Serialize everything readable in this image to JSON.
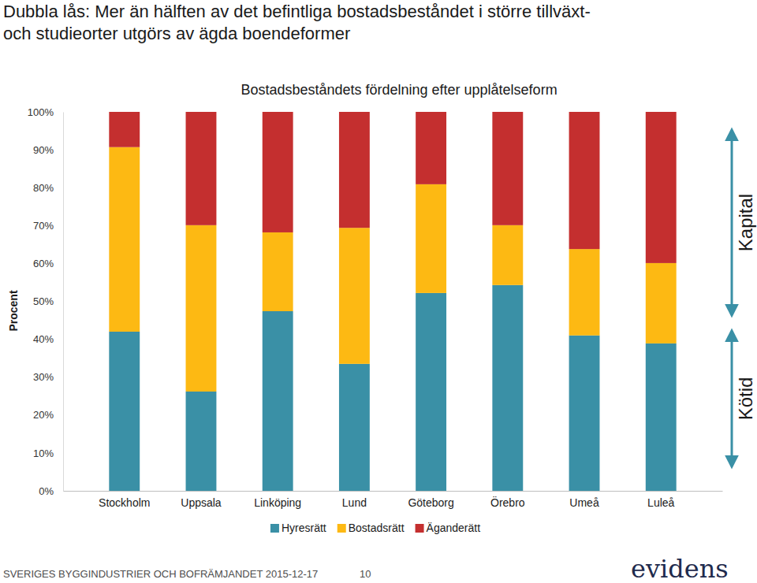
{
  "chart_data": {
    "type": "bar",
    "stacked": true,
    "title": [
      "Dubbla lås: Mer än hälften av det befintliga bostadsbeståndet i större tillväxt-",
      "och studieorter utgörs av ägda boendeformer"
    ],
    "subtitle": "Bostadsbeståndets fördelning efter upplåtelseform",
    "y_label": "Procent",
    "categories": [
      "Stockholm",
      "Uppsala",
      "Linköping",
      "Lund",
      "Göteborg",
      "Örebro",
      "Umeå",
      "Luleå"
    ],
    "series": [
      {
        "name": "Hyresrätt",
        "color": "#3a90a6",
        "values": [
          42.0,
          26.2,
          47.4,
          33.5,
          52.2,
          54.3,
          41.0,
          38.9
        ]
      },
      {
        "name": "Bostadsrätt",
        "color": "#fdb913",
        "values": [
          48.7,
          43.9,
          20.8,
          35.9,
          28.7,
          15.8,
          22.8,
          21.2
        ]
      },
      {
        "name": "Äganderätt",
        "color": "#c42f2f",
        "values": [
          9.3,
          29.9,
          31.8,
          30.6,
          19.1,
          29.9,
          36.2,
          39.9
        ]
      }
    ],
    "ylim": [
      0,
      100
    ],
    "yticks": [
      {
        "value": 0,
        "label": "0%"
      },
      {
        "value": 10,
        "label": "10%"
      },
      {
        "value": 20,
        "label": "20%"
      },
      {
        "value": 30,
        "label": "30%"
      },
      {
        "value": 40,
        "label": "40%"
      },
      {
        "value": 50,
        "label": "50%"
      },
      {
        "value": 60,
        "label": "60%"
      },
      {
        "value": 70,
        "label": "70%"
      },
      {
        "value": 80,
        "label": "80%"
      },
      {
        "value": 90,
        "label": "90%"
      },
      {
        "value": 100,
        "label": "100%"
      }
    ],
    "grid": false,
    "legend": "bottom",
    "annotations": [
      "Kapital",
      "Kötid"
    ],
    "footer": "SVERIGES BYGGINDUSTRIER OCH BOFRÄMJANDET 2015-12-17",
    "page_number": "10",
    "logo": "evidens"
  }
}
